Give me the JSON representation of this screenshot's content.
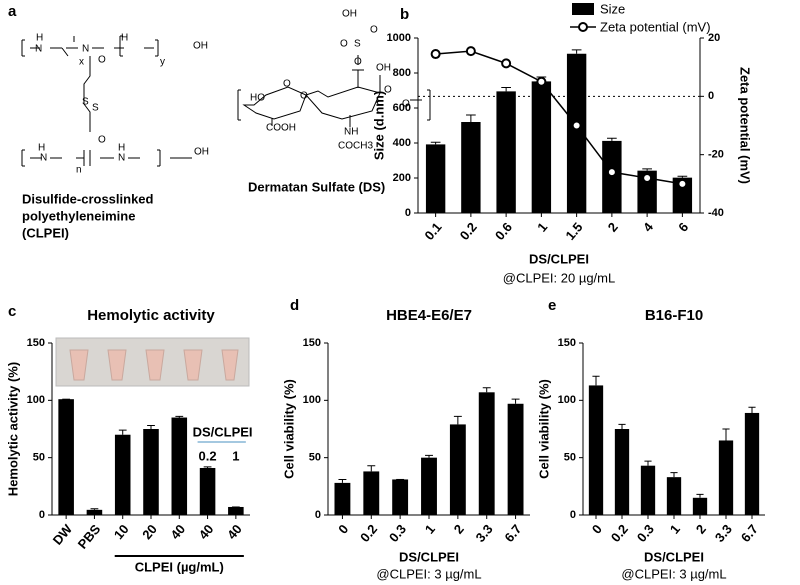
{
  "panel_a": {
    "letter": "a",
    "clpei_caption": [
      "Disulfide-crosslinked",
      "polyethyleneimine",
      "(CLPEI)"
    ],
    "clpei_atoms": [
      "H",
      "N",
      "x",
      "N",
      "H",
      "y",
      "OH",
      "O",
      "S",
      "S",
      "O",
      "H",
      "N",
      "n",
      "N",
      "H",
      "OH"
    ],
    "ds_caption": "Dermatan Sulfate (DS)",
    "ds_atoms": [
      "OH",
      "O",
      "S",
      "O",
      "O",
      "OH",
      "O",
      "HO",
      "COOH",
      "O",
      "O",
      "NH",
      "COCH3",
      "O"
    ]
  },
  "chart_data": [
    {
      "type": "bar_line",
      "panel": "b",
      "categories": [
        "0.1",
        "0.2",
        "0.6",
        "1",
        "1.5",
        "2",
        "4",
        "6"
      ],
      "series": [
        {
          "name": "Size",
          "color": "#000000",
          "type": "bar",
          "values": [
            392,
            520,
            695,
            752,
            910,
            412,
            242,
            202
          ],
          "errors": [
            12,
            40,
            22,
            25,
            22,
            15,
            10,
            8
          ]
        },
        {
          "name": "Zeta potential (mV)",
          "color": "#000000",
          "type": "line",
          "axis": "y2",
          "values": [
            14.5,
            15.5,
            11.3,
            5,
            -10,
            -26,
            -28,
            -30
          ]
        }
      ],
      "ylim": [
        0,
        1000
      ],
      "yticks": [
        0,
        200,
        400,
        600,
        800,
        1000
      ],
      "y2lim": [
        -40,
        20
      ],
      "y2ticks": [
        -40,
        -20,
        0,
        20
      ],
      "ylabel": "Size (d.nm)",
      "y2label": "Zeta potential (mV)",
      "xlabel": "DS/CLPEI",
      "subtitle": "@CLPEI: 20 µg/mL",
      "reference_line_y2": 0
    },
    {
      "type": "bar",
      "panel": "c",
      "title": "Hemolytic activity",
      "categories": [
        "DW",
        "PBS",
        "10",
        "20",
        "40",
        "40",
        "40"
      ],
      "values": [
        101,
        4.5,
        70,
        75,
        85,
        41,
        7
      ],
      "errors": [
        0,
        1,
        4,
        3,
        1,
        1,
        0
      ],
      "color": "#000000",
      "ylim": [
        0,
        150
      ],
      "yticks": [
        0,
        50,
        100,
        150
      ],
      "ylabel": "Hemolytic activity (%)",
      "annotations": [
        "DS/CLPEI",
        "0.2",
        "1"
      ],
      "group_label": "CLPEI (µg/mL)"
    },
    {
      "type": "bar",
      "panel": "d",
      "title": "HBE4-E6/E7",
      "categories": [
        "0",
        "0.2",
        "0.3",
        "1",
        "2",
        "3.3",
        "6.7"
      ],
      "values": [
        28,
        38,
        31,
        50,
        79,
        107,
        97
      ],
      "errors": [
        3,
        5,
        0,
        2,
        7,
        4,
        4
      ],
      "color": "#000000",
      "ylim": [
        0,
        150
      ],
      "yticks": [
        0,
        50,
        100,
        150
      ],
      "ylabel": "Cell viability (%)",
      "xlabel": "DS/CLPEI",
      "subtitle": "@CLPEI: 3 µg/mL"
    },
    {
      "type": "bar",
      "panel": "e",
      "title": "B16-F10",
      "categories": [
        "0",
        "0.2",
        "0.3",
        "1",
        "2",
        "3.3",
        "6.7"
      ],
      "values": [
        113,
        75,
        43,
        33,
        15,
        65,
        89
      ],
      "errors": [
        8,
        4,
        4,
        4,
        3,
        10,
        5
      ],
      "color": "#000000",
      "ylim": [
        0,
        150
      ],
      "yticks": [
        0,
        50,
        100,
        150
      ],
      "ylabel": "Cell viability (%)",
      "xlabel": "DS/CLPEI",
      "subtitle": "@CLPEI: 3 µg/mL"
    }
  ]
}
